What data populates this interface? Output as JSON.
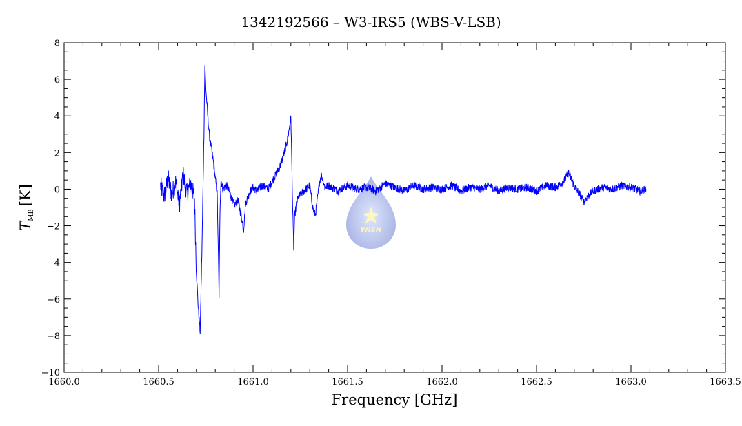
{
  "chart_data": {
    "type": "line",
    "title": "1342192566 – W3-IRS5 (WBS-V-LSB)",
    "xlabel": "Frequency [GHz]",
    "ylabel": {
      "symbol": "T",
      "subscript": "MB",
      "unit": "[K]"
    },
    "xlim": [
      1660.0,
      1663.5
    ],
    "ylim": [
      -10,
      8
    ],
    "xticks": [
      "1660.0",
      "1660.5",
      "1661.0",
      "1661.5",
      "1662.0",
      "1662.5",
      "1663.0",
      "1663.5"
    ],
    "yticks": [
      "−10",
      "−8",
      "−6",
      "−4",
      "−2",
      "0",
      "2",
      "4",
      "6",
      "8"
    ],
    "grid": false,
    "series": [
      {
        "color": "#0000ff",
        "x": [
          1660.51,
          1660.53,
          1660.55,
          1660.57,
          1660.59,
          1660.61,
          1660.63,
          1660.65,
          1660.67,
          1660.69,
          1660.7,
          1660.71,
          1660.72,
          1660.73,
          1660.74,
          1660.745,
          1660.75,
          1660.76,
          1660.77,
          1660.78,
          1660.79,
          1660.8,
          1660.81,
          1660.82,
          1660.825,
          1660.83,
          1660.84,
          1660.86,
          1660.88,
          1660.9,
          1660.92,
          1660.94,
          1660.95,
          1660.96,
          1660.98,
          1661.0,
          1661.02,
          1661.05,
          1661.08,
          1661.1,
          1661.12,
          1661.14,
          1661.16,
          1661.18,
          1661.19,
          1661.2,
          1661.21,
          1661.215,
          1661.22,
          1661.23,
          1661.24,
          1661.26,
          1661.28,
          1661.3,
          1661.31,
          1661.32,
          1661.33,
          1661.34,
          1661.35,
          1661.36,
          1661.37,
          1661.38,
          1661.4,
          1661.45,
          1661.5,
          1661.55,
          1661.6,
          1661.65,
          1661.7,
          1661.75,
          1661.8,
          1661.85,
          1661.9,
          1661.95,
          1662.0,
          1662.05,
          1662.1,
          1662.15,
          1662.2,
          1662.25,
          1662.3,
          1662.35,
          1662.4,
          1662.45,
          1662.5,
          1662.55,
          1662.6,
          1662.63,
          1662.65,
          1662.67,
          1662.69,
          1662.71,
          1662.73,
          1662.75,
          1662.77,
          1662.8,
          1662.85,
          1662.9,
          1662.95,
          1663.0,
          1663.05,
          1663.08
        ],
        "y": [
          0.2,
          -0.4,
          0.6,
          -0.3,
          0.4,
          -0.8,
          0.8,
          -0.2,
          0.3,
          -0.5,
          -4.5,
          -6.5,
          -7.8,
          -3.0,
          3.0,
          6.8,
          5.5,
          4.0,
          2.8,
          2.2,
          1.5,
          0.6,
          -0.2,
          -5.8,
          -1.0,
          0.5,
          0.0,
          0.2,
          -0.3,
          -0.9,
          -0.6,
          -1.6,
          -2.2,
          -0.8,
          -0.2,
          0.1,
          -0.1,
          0.2,
          0.0,
          0.4,
          0.8,
          1.2,
          1.8,
          2.6,
          3.2,
          4.0,
          -1.2,
          -3.2,
          -1.5,
          -0.8,
          -0.4,
          -0.2,
          0.0,
          0.2,
          -0.6,
          -1.2,
          -1.4,
          -0.6,
          0.3,
          0.8,
          0.5,
          0.1,
          0.2,
          -0.1,
          0.2,
          0.0,
          0.1,
          -0.1,
          0.3,
          0.1,
          -0.1,
          0.2,
          0.0,
          0.1,
          0.0,
          0.2,
          -0.1,
          0.1,
          0.0,
          0.2,
          -0.1,
          0.1,
          0.0,
          0.1,
          -0.1,
          0.2,
          0.1,
          0.3,
          0.5,
          0.9,
          0.4,
          0.0,
          -0.3,
          -0.7,
          -0.4,
          -0.1,
          0.1,
          0.0,
          0.2,
          0.1,
          -0.1,
          0.0
        ]
      }
    ]
  },
  "watermark": {
    "text": "WISH"
  }
}
